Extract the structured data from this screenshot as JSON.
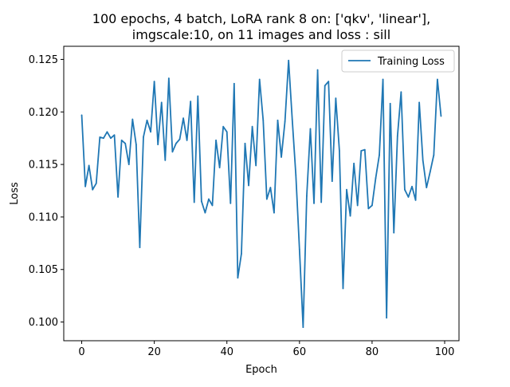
{
  "chart_data": {
    "type": "line",
    "title_lines": [
      "100 epochs, 4 batch, LoRA rank 8 on: ['qkv', 'linear'],",
      "imgscale:10, on 11 images and loss : sill"
    ],
    "xlabel": "Epoch",
    "ylabel": "Loss",
    "xlim": [
      -4.95,
      103.95
    ],
    "ylim": [
      0.09822,
      0.12625
    ],
    "xticks": [
      0,
      20,
      40,
      60,
      80,
      100
    ],
    "yticks": [
      0.1,
      0.105,
      0.11,
      0.115,
      0.12,
      0.125
    ],
    "ytick_labels": [
      "0.100",
      "0.105",
      "0.110",
      "0.115",
      "0.120",
      "0.125"
    ],
    "grid": false,
    "legend_position": "top-right",
    "series": [
      {
        "name": "Training Loss",
        "color": "#1f77b4",
        "x": [
          0,
          1,
          2,
          3,
          4,
          5,
          6,
          7,
          8,
          9,
          10,
          11,
          12,
          13,
          14,
          15,
          16,
          17,
          18,
          19,
          20,
          21,
          22,
          23,
          24,
          25,
          26,
          27,
          28,
          29,
          30,
          31,
          32,
          33,
          34,
          35,
          36,
          37,
          38,
          39,
          40,
          41,
          42,
          43,
          44,
          45,
          46,
          47,
          48,
          49,
          50,
          51,
          52,
          53,
          54,
          55,
          56,
          57,
          58,
          59,
          60,
          61,
          62,
          63,
          64,
          65,
          66,
          67,
          68,
          69,
          70,
          71,
          72,
          73,
          74,
          75,
          76,
          77,
          78,
          79,
          80,
          81,
          82,
          83,
          84,
          85,
          86,
          87,
          88,
          89,
          90,
          91,
          92,
          93,
          94,
          95,
          96,
          97,
          98,
          99
        ],
        "values": [
          0.1197,
          0.1129,
          0.1149,
          0.1126,
          0.1132,
          0.1176,
          0.1175,
          0.1181,
          0.1175,
          0.1178,
          0.1119,
          0.1173,
          0.117,
          0.115,
          0.1193,
          0.1169,
          0.1071,
          0.1176,
          0.1192,
          0.1181,
          0.1229,
          0.1169,
          0.1209,
          0.1154,
          0.1232,
          0.1162,
          0.117,
          0.1174,
          0.1194,
          0.1173,
          0.121,
          0.1114,
          0.1215,
          0.1115,
          0.1104,
          0.1117,
          0.1111,
          0.1173,
          0.1147,
          0.1186,
          0.1181,
          0.1113,
          0.1227,
          0.1042,
          0.1065,
          0.117,
          0.113,
          0.1186,
          0.1149,
          0.1231,
          0.1192,
          0.1117,
          0.1128,
          0.1104,
          0.1192,
          0.1157,
          0.1191,
          0.1249,
          0.1193,
          0.114,
          0.1069,
          0.0995,
          0.112,
          0.1184,
          0.1113,
          0.124,
          0.1114,
          0.1225,
          0.1229,
          0.1134,
          0.1213,
          0.1163,
          0.1032,
          0.1126,
          0.1101,
          0.1151,
          0.1111,
          0.1163,
          0.1164,
          0.1108,
          0.1111,
          0.1137,
          0.1159,
          0.1231,
          0.1004,
          0.1208,
          0.1085,
          0.1177,
          0.1219,
          0.1126,
          0.1119,
          0.1129,
          0.1116,
          0.1209,
          0.1154,
          0.1128,
          0.1143,
          0.1159,
          0.1231,
          0.1196
        ]
      }
    ]
  }
}
